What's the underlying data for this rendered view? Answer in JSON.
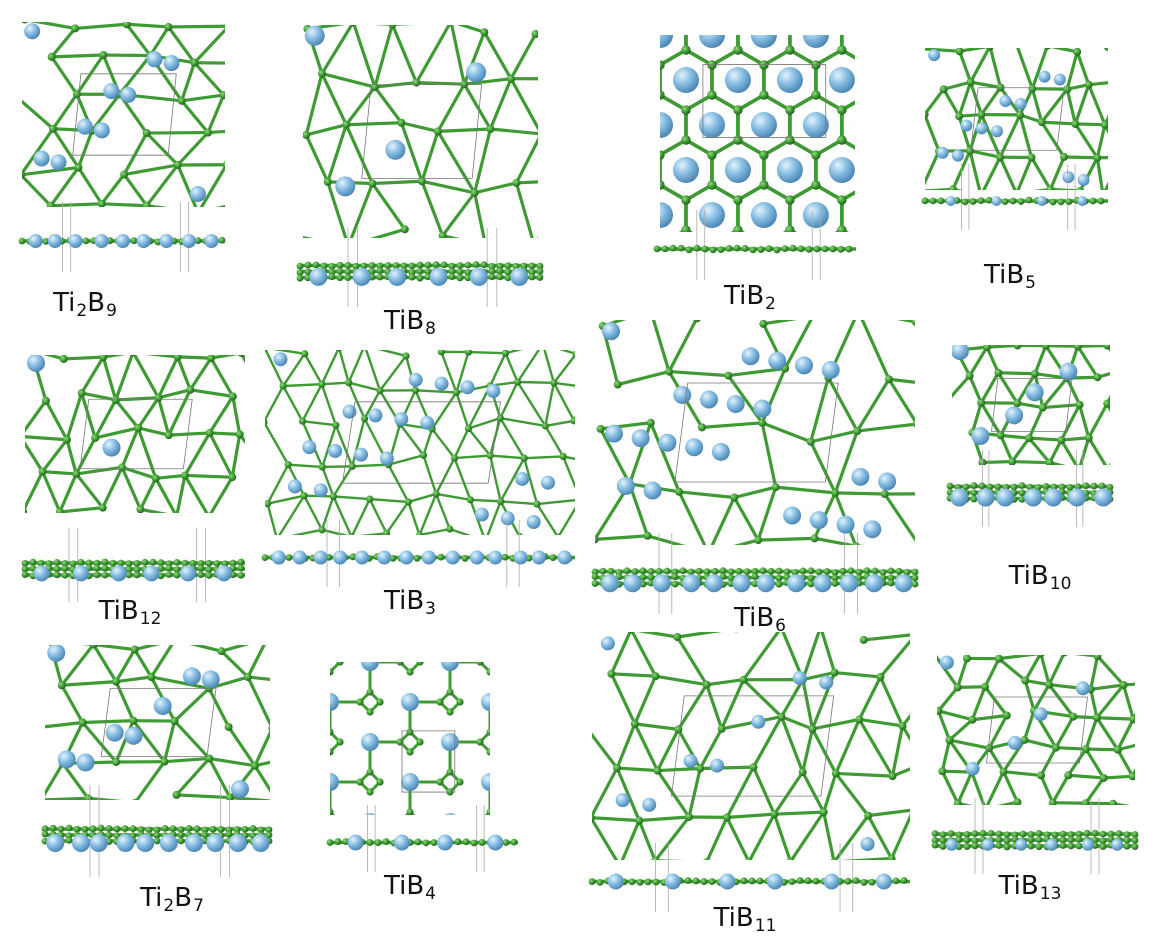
{
  "colors": {
    "boron": "#3f9a34",
    "titanium": "#86bde3",
    "cell": "#777777"
  },
  "panels": [
    {
      "id": "ti2b9",
      "label": {
        "main": "Ti",
        "sub1": "2",
        "mid": "B",
        "sub2": "9"
      }
    },
    {
      "id": "tib8",
      "label": {
        "main": "TiB",
        "sub": "8"
      }
    },
    {
      "id": "tib2",
      "label": {
        "main": "TiB",
        "sub": "2"
      }
    },
    {
      "id": "tib5",
      "label": {
        "main": "TiB",
        "sub": "5"
      }
    },
    {
      "id": "tib12",
      "label": {
        "main": "TiB",
        "sub": "12"
      }
    },
    {
      "id": "tib3",
      "label": {
        "main": "TiB",
        "sub": "3"
      }
    },
    {
      "id": "tib6",
      "label": {
        "main": "TiB",
        "sub": "6"
      }
    },
    {
      "id": "tib10",
      "label": {
        "main": "TiB",
        "sub": "10"
      }
    },
    {
      "id": "ti2b7",
      "label": {
        "main": "Ti",
        "sub1": "2",
        "mid": "B",
        "sub2": "7"
      }
    },
    {
      "id": "tib4",
      "label": {
        "main": "TiB",
        "sub": "4"
      }
    },
    {
      "id": "tib11",
      "label": {
        "main": "TiB",
        "sub": "11"
      }
    },
    {
      "id": "tib13",
      "label": {
        "main": "TiB",
        "sub": "13"
      }
    }
  ]
}
